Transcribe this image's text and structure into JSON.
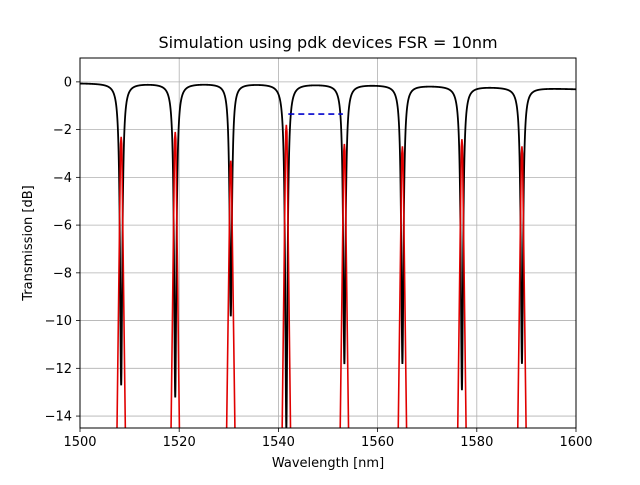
{
  "chart_data": {
    "type": "line",
    "title": "Simulation using pdk devices FSR = 10nm",
    "xlabel": "Wavelength [nm]",
    "ylabel": "Transmission [dB]",
    "xlim": [
      1500,
      1600
    ],
    "ylim": [
      -14.5,
      1
    ],
    "xticks": [
      1500,
      1520,
      1540,
      1560,
      1580,
      1600
    ],
    "yticks": [
      0,
      -2,
      -4,
      -6,
      -8,
      -10,
      -12,
      -14
    ],
    "xtick_labels": [
      "1500",
      "1520",
      "1540",
      "1560",
      "1580",
      "1600"
    ],
    "ytick_labels": [
      "0",
      "−2",
      "−4",
      "−6",
      "−8",
      "−10",
      "−12",
      "−14"
    ],
    "grid": true,
    "series": [
      {
        "color": "#000000",
        "style": "solid",
        "baseline": [
          -0.05,
          -0.3
        ],
        "dips": [
          {
            "x": 1508.3,
            "depth": -12.7
          },
          {
            "x": 1519.2,
            "depth": -13.2
          },
          {
            "x": 1530.4,
            "depth": -9.8
          },
          {
            "x": 1541.6,
            "depth": -14.5
          },
          {
            "x": 1553.3,
            "depth": -11.8
          },
          {
            "x": 1565.0,
            "depth": -11.8
          },
          {
            "x": 1577.0,
            "depth": -12.9
          },
          {
            "x": 1589.1,
            "depth": -11.8
          }
        ]
      },
      {
        "color": "#e00000",
        "style": "solid",
        "dips": [
          {
            "x": 1508.3,
            "top": -2.3
          },
          {
            "x": 1519.2,
            "top": -2.1
          },
          {
            "x": 1530.4,
            "top": -3.3
          },
          {
            "x": 1541.6,
            "top": -1.8
          },
          {
            "x": 1553.3,
            "top": -2.6
          },
          {
            "x": 1565.0,
            "top": -2.7
          },
          {
            "x": 1577.0,
            "top": -2.4
          },
          {
            "x": 1589.1,
            "top": -2.7
          }
        ]
      },
      {
        "color": "#0000cc",
        "style": "dashed",
        "x": [
          1542,
          1553
        ],
        "y": [
          -1.35,
          -1.35
        ]
      }
    ]
  }
}
